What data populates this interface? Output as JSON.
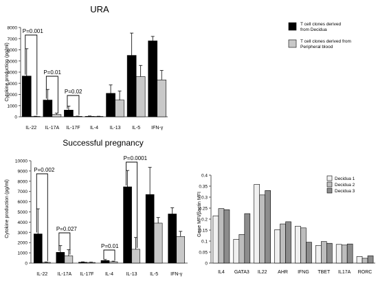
{
  "colors": {
    "decidua": "#000000",
    "peripheral": "#c8c8c8",
    "decidua1": "#f0f0f0",
    "decidua2": "#bdbdbd",
    "decidua3": "#8c8c8c"
  },
  "chart_data": [
    {
      "type": "bar",
      "title": "URA",
      "ylabel": "Cytokine production (pg/ml)",
      "ylim": [
        0,
        8000
      ],
      "yticks": [
        "0",
        "1000",
        "2000",
        "3000",
        "4000",
        "5000",
        "6000",
        "7000",
        "8000"
      ],
      "grid": false,
      "legend_position": "right",
      "categories": [
        "IL-22",
        "IL-17A",
        "IL-17F",
        "IL-4",
        "IL-13",
        "IL-5",
        "IFN-γ"
      ],
      "series": [
        {
          "name": "T cell clones derived from Decidua",
          "values": [
            3650,
            1500,
            600,
            40,
            2100,
            5500,
            6800
          ],
          "errors": [
            2450,
            950,
            350,
            30,
            750,
            2000,
            400
          ]
        },
        {
          "name": "T cell clones derived from Peripheral blood",
          "values": [
            30,
            200,
            40,
            30,
            1500,
            3600,
            3300
          ],
          "errors": [
            20,
            120,
            20,
            20,
            800,
            1000,
            850
          ]
        }
      ],
      "annotations": [
        {
          "text": "P=0.001",
          "category": 0
        },
        {
          "text": "P=0.01",
          "category": 1
        },
        {
          "text": "P=0.02",
          "category": 2
        }
      ]
    },
    {
      "type": "bar",
      "title": "Successful pregnancy",
      "ylabel": "Cytokine production (pg/ml)",
      "ylim": [
        0,
        10000
      ],
      "yticks": [
        "0",
        "1000",
        "2000",
        "3000",
        "4000",
        "5000",
        "6000",
        "7000",
        "8000",
        "9000",
        "10000"
      ],
      "grid": false,
      "categories": [
        "IL-22",
        "IL-17A",
        "IL-17F",
        "IL-4",
        "IL-13",
        "IL-5",
        "IFN-γ"
      ],
      "series": [
        {
          "name": "T cell clones derived from Decidua",
          "values": [
            2850,
            1050,
            80,
            250,
            7450,
            6700,
            4800
          ],
          "errors": [
            2450,
            650,
            40,
            100,
            1600,
            2650,
            600
          ]
        },
        {
          "name": "T cell clones derived from Peripheral blood",
          "values": [
            70,
            700,
            60,
            130,
            1350,
            3900,
            2600
          ],
          "errors": [
            40,
            600,
            30,
            60,
            1150,
            550,
            500
          ]
        }
      ],
      "annotations": [
        {
          "text": "P=0.002",
          "category": 0
        },
        {
          "text": "P=0.027",
          "category": 1
        },
        {
          "text": "P=0.01",
          "category": 3
        },
        {
          "text": "P=0.0001",
          "category": 4
        }
      ]
    },
    {
      "type": "bar",
      "title": "",
      "ylabel": "Gene MFI/βactin MFI",
      "ylim": [
        0,
        0.4
      ],
      "yticks": [
        "0",
        "0.05",
        "0.1",
        "0.15",
        "0.2",
        "0.25",
        "0.3",
        "0.35",
        "0.4"
      ],
      "grid": false,
      "legend_position": "top-right",
      "categories": [
        "IL4",
        "GATA3",
        "IL22",
        "AHR",
        "IFNG",
        "TBET",
        "IL17A",
        "RORC"
      ],
      "series": [
        {
          "name": "Decidua 1",
          "values": [
            0.215,
            0.108,
            0.358,
            0.152,
            0.168,
            0.08,
            0.085,
            0.03
          ]
        },
        {
          "name": "Decidua 2",
          "values": [
            0.248,
            0.13,
            0.31,
            0.178,
            0.16,
            0.098,
            0.082,
            0.022
          ]
        },
        {
          "name": "Decidua 3",
          "values": [
            0.243,
            0.225,
            0.33,
            0.188,
            0.095,
            0.09,
            0.087,
            0.033
          ]
        }
      ]
    }
  ]
}
